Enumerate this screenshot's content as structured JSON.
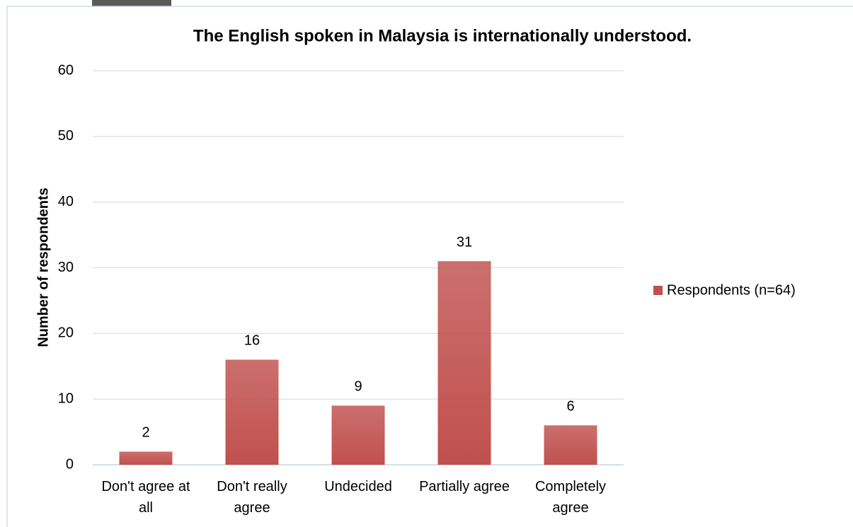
{
  "chart_data": {
    "type": "bar",
    "title": "The English spoken in Malaysia is internationally understood.",
    "y_label": "Number of respondents",
    "categories": [
      "Don't agree at all",
      "Don't really agree",
      "Undecided",
      "Partially agree",
      "Completely agree"
    ],
    "series": [
      {
        "name": "Respondents (n=64)",
        "color": "#c0504d",
        "values": [
          2,
          16,
          9,
          31,
          6
        ]
      }
    ],
    "ylim": [
      0,
      60
    ],
    "yticks": [
      0,
      10,
      20,
      30,
      40,
      50,
      60
    ],
    "grid": true,
    "legend": "right"
  }
}
